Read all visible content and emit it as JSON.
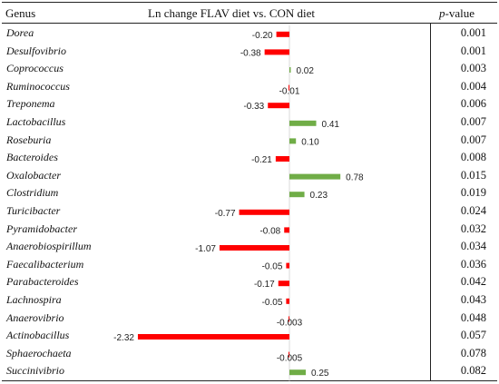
{
  "header": {
    "genus": "Genus",
    "change": "Ln change FLAV diet vs. CON diet",
    "pvalue_p": "p",
    "pvalue_rest": "-value"
  },
  "colors": {
    "negative": "#ff0000",
    "positive": "#70ad47",
    "axis": "#bfbfbf"
  },
  "chart_data": {
    "type": "bar",
    "orientation": "horizontal",
    "title": "Ln change FLAV diet vs. CON diet",
    "xlim": [
      -2.32,
      0.78
    ],
    "categories": [
      "Dorea",
      "Desulfovibrio",
      "Coprococcus",
      "Ruminococcus",
      "Treponema",
      "Lactobacillus",
      "Roseburia",
      "Bacteroides",
      "Oxalobacter",
      "Clostridium",
      "Turicibacter",
      "Pyramidobacter",
      "Anaerobiospirillum",
      "Faecalibacterium",
      "Parabacteroides",
      "Lachnospira",
      "Anaerovibrio",
      "Actinobacillus",
      "Sphaerochaeta",
      "Succinivibrio"
    ],
    "values": [
      -0.2,
      -0.38,
      0.02,
      -0.01,
      -0.33,
      0.41,
      0.1,
      -0.21,
      0.78,
      0.23,
      -0.77,
      -0.08,
      -1.07,
      -0.05,
      -0.17,
      -0.05,
      -0.003,
      -2.32,
      -0.005,
      0.25
    ],
    "value_labels": [
      "-0.20",
      "-0.38",
      "0.02",
      "-0.01",
      "-0.33",
      "0.41",
      "0.10",
      "-0.21",
      "0.78",
      "0.23",
      "-0.77",
      "-0.08",
      "-1.07",
      "-0.05",
      "-0.17",
      "-0.05",
      "-0.003",
      "-2.32",
      "-0.005",
      "0.25"
    ],
    "p_values": [
      "0.001",
      "0.001",
      "0.003",
      "0.004",
      "0.006",
      "0.007",
      "0.007",
      "0.008",
      "0.015",
      "0.019",
      "0.024",
      "0.032",
      "0.034",
      "0.036",
      "0.042",
      "0.043",
      "0.048",
      "0.057",
      "0.078",
      "0.082"
    ]
  }
}
